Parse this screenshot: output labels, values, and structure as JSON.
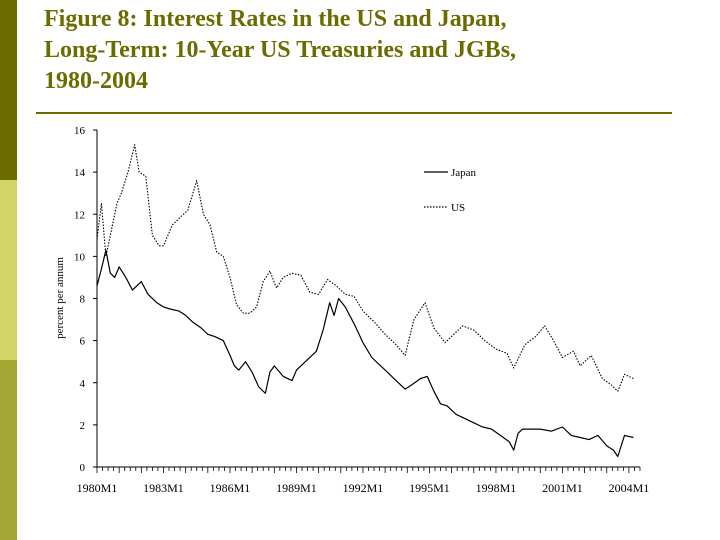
{
  "slide": {
    "title_lines": [
      "Figure 8: Interest Rates in the US and Japan,",
      "Long-Term: 10-Year US Treasuries and JGBs,",
      "1980-2004"
    ],
    "colors": {
      "title": "#6b6b00",
      "sidebar_top": "#6b6b00",
      "sidebar_mid": "#d1d567",
      "sidebar_bottom": "#a3a834"
    }
  },
  "chart_data": {
    "type": "line",
    "ylabel": "percent per annum",
    "ylim": [
      0,
      16
    ],
    "yticks": [
      0,
      2,
      4,
      6,
      8,
      10,
      12,
      14,
      16
    ],
    "xlim": [
      1980.0,
      2004.5
    ],
    "xtick_labels": [
      "1980M1",
      "1983M1",
      "1986M1",
      "1989M1",
      "1992M1",
      "1995M1",
      "1998M1",
      "2001M1",
      "2004M1"
    ],
    "xtick_positions": [
      1980,
      1983,
      1986,
      1989,
      1992,
      1995,
      1998,
      2001,
      2004
    ],
    "legend_position": "top-right",
    "series": [
      {
        "name": "Japan",
        "style": "solid",
        "x": [
          1980.0,
          1980.2,
          1980.4,
          1980.6,
          1980.8,
          1981.0,
          1981.3,
          1981.6,
          1982.0,
          1982.3,
          1982.7,
          1983.0,
          1983.3,
          1983.7,
          1984.0,
          1984.3,
          1984.7,
          1985.0,
          1985.3,
          1985.7,
          1986.0,
          1986.2,
          1986.4,
          1986.7,
          1987.0,
          1987.3,
          1987.6,
          1987.8,
          1988.0,
          1988.4,
          1988.8,
          1989.0,
          1989.5,
          1989.9,
          1990.2,
          1990.5,
          1990.7,
          1990.9,
          1991.2,
          1991.6,
          1992.0,
          1992.4,
          1992.8,
          1993.2,
          1993.6,
          1993.9,
          1994.2,
          1994.6,
          1994.9,
          1995.2,
          1995.5,
          1995.8,
          1996.2,
          1996.6,
          1997.0,
          1997.4,
          1997.8,
          1998.2,
          1998.6,
          1998.8,
          1999.0,
          1999.2,
          1999.6,
          2000.0,
          2000.5,
          2001.0,
          2001.4,
          2001.8,
          2002.2,
          2002.6,
          2003.0,
          2003.3,
          2003.5,
          2003.8,
          2004.2
        ],
        "y": [
          8.6,
          9.4,
          10.3,
          9.2,
          9.0,
          9.5,
          9.0,
          8.4,
          8.8,
          8.2,
          7.8,
          7.6,
          7.5,
          7.4,
          7.2,
          6.9,
          6.6,
          6.3,
          6.2,
          6.0,
          5.3,
          4.8,
          4.6,
          5.0,
          4.5,
          3.8,
          3.5,
          4.5,
          4.8,
          4.3,
          4.1,
          4.6,
          5.1,
          5.5,
          6.5,
          7.8,
          7.2,
          8.0,
          7.6,
          6.8,
          5.9,
          5.2,
          4.8,
          4.4,
          4.0,
          3.7,
          3.9,
          4.2,
          4.3,
          3.6,
          3.0,
          2.9,
          2.5,
          2.3,
          2.1,
          1.9,
          1.8,
          1.5,
          1.2,
          0.8,
          1.6,
          1.8,
          1.8,
          1.8,
          1.7,
          1.9,
          1.5,
          1.4,
          1.3,
          1.5,
          1.0,
          0.8,
          0.5,
          1.5,
          1.4
        ]
      },
      {
        "name": "US",
        "style": "dotted",
        "x": [
          1980.0,
          1980.2,
          1980.4,
          1980.6,
          1980.9,
          1981.1,
          1981.4,
          1981.7,
          1981.9,
          1982.2,
          1982.5,
          1982.8,
          1983.0,
          1983.4,
          1983.8,
          1984.1,
          1984.5,
          1984.8,
          1985.1,
          1985.4,
          1985.7,
          1986.0,
          1986.3,
          1986.6,
          1986.9,
          1987.2,
          1987.5,
          1987.8,
          1988.1,
          1988.4,
          1988.8,
          1989.2,
          1989.6,
          1990.0,
          1990.4,
          1990.8,
          1991.2,
          1991.6,
          1992.0,
          1992.5,
          1993.0,
          1993.5,
          1993.9,
          1994.3,
          1994.8,
          1995.2,
          1995.7,
          1996.1,
          1996.5,
          1997.0,
          1997.5,
          1998.0,
          1998.5,
          1998.8,
          1999.3,
          1999.8,
          2000.2,
          2000.6,
          2001.0,
          2001.5,
          2001.8,
          2002.3,
          2002.8,
          2003.2,
          2003.5,
          2003.8,
          2004.2
        ],
        "y": [
          10.8,
          12.5,
          10.0,
          11.0,
          12.5,
          13.0,
          14.0,
          15.3,
          14.0,
          13.8,
          11.0,
          10.5,
          10.5,
          11.5,
          11.9,
          12.2,
          13.6,
          12.0,
          11.5,
          10.2,
          10.0,
          9.0,
          7.7,
          7.3,
          7.3,
          7.6,
          8.8,
          9.3,
          8.5,
          9.0,
          9.2,
          9.1,
          8.3,
          8.2,
          8.9,
          8.6,
          8.2,
          8.1,
          7.4,
          6.9,
          6.3,
          5.8,
          5.3,
          7.0,
          7.8,
          6.6,
          5.9,
          6.3,
          6.7,
          6.5,
          6.0,
          5.6,
          5.4,
          4.7,
          5.8,
          6.2,
          6.7,
          6.0,
          5.2,
          5.5,
          4.8,
          5.3,
          4.2,
          3.9,
          3.6,
          4.4,
          4.2
        ]
      }
    ]
  }
}
